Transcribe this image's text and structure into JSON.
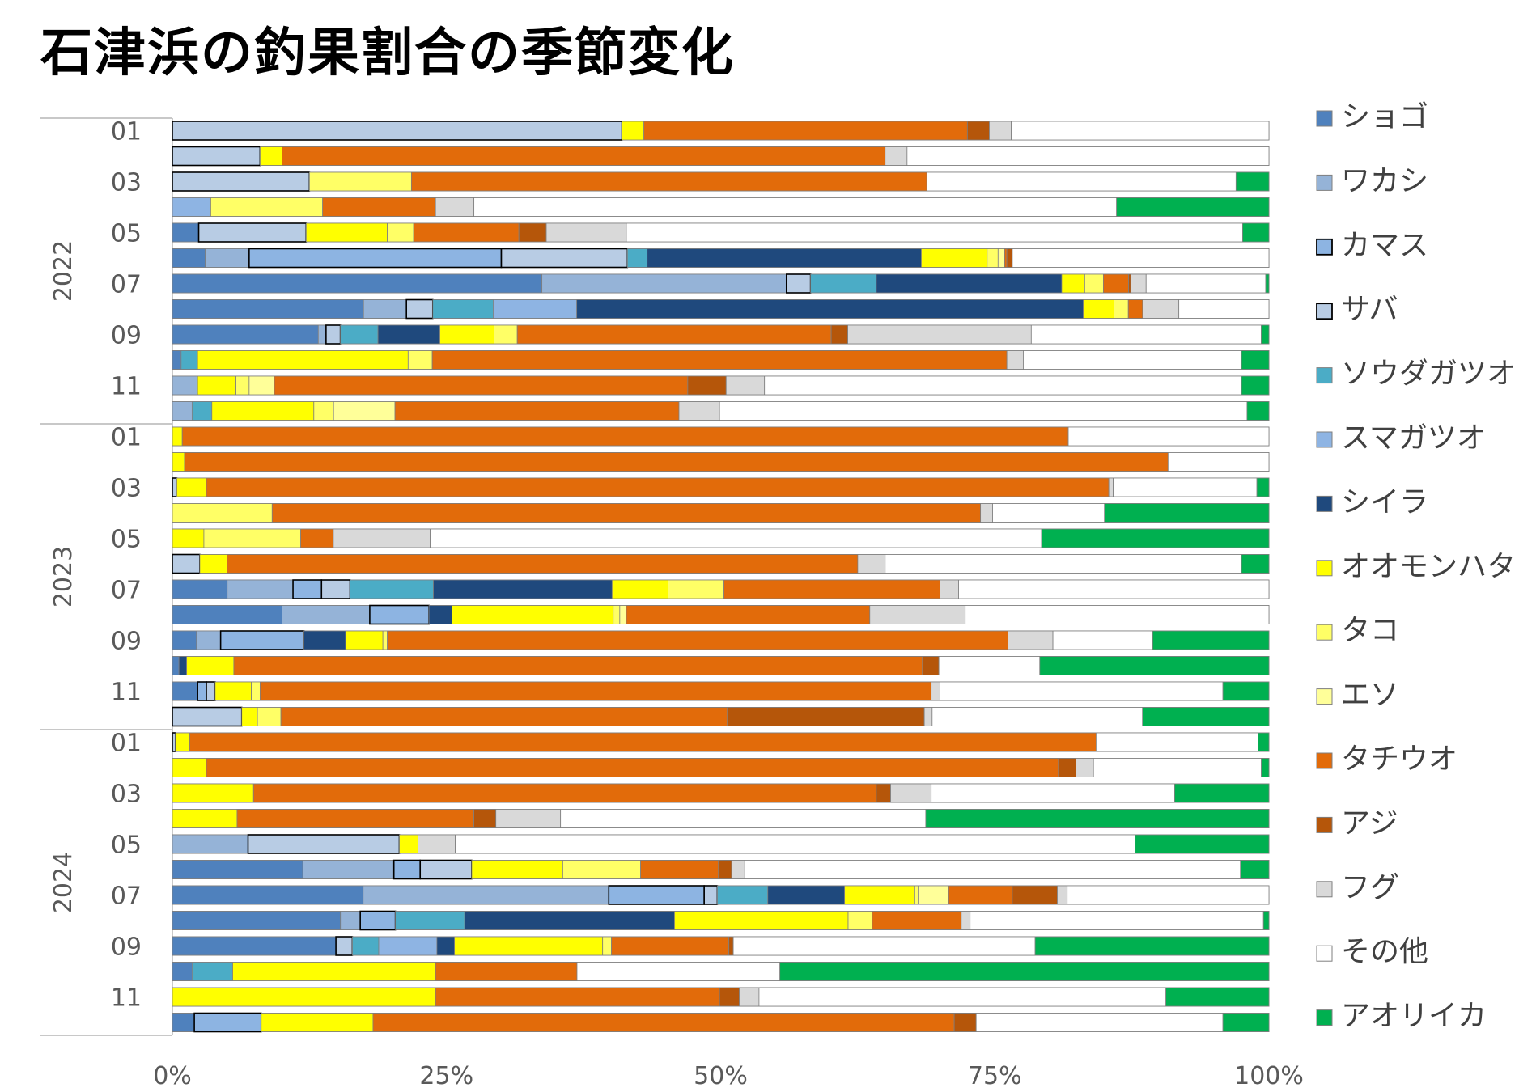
{
  "colors": {
    "text": "#595959",
    "title": "#000000",
    "frame": "#a6a6a6"
  },
  "chart_data": {
    "type": "bar",
    "orientation": "horizontal",
    "stacked": "percent",
    "title": "石津浜の釣果割合の季節変化",
    "xlim": [
      0,
      100
    ],
    "x_ticks": [
      "0%",
      "25%",
      "50%",
      "75%",
      "100%"
    ],
    "grid": false,
    "legend_position": "right",
    "year_labels": [
      "2022",
      "2023",
      "2024"
    ],
    "month_labels": [
      "01",
      "",
      "03",
      "",
      "05",
      "",
      "07",
      "",
      "09",
      "",
      "11",
      ""
    ],
    "series": [
      {
        "name": "ショゴ",
        "color": "#4f81bd",
        "border": "light"
      },
      {
        "name": "ワカシ",
        "color": "#95b3d7",
        "border": "light"
      },
      {
        "name": "カマス",
        "color": "#8db4e2",
        "border": "dark"
      },
      {
        "name": "サバ",
        "color": "#b8cce4",
        "border": "dark"
      },
      {
        "name": "ソウダガツオ",
        "color": "#4bacc6",
        "border": "light"
      },
      {
        "name": "スマガツオ",
        "color": "#8eb4e3",
        "border": "light"
      },
      {
        "name": "シイラ",
        "color": "#1f497d",
        "border": "light"
      },
      {
        "name": "オオモンハタ",
        "color": "#ffff00",
        "border": "light"
      },
      {
        "name": "タコ",
        "color": "#ffff66",
        "border": "light"
      },
      {
        "name": "エソ",
        "color": "#ffff99",
        "border": "light"
      },
      {
        "name": "タチウオ",
        "color": "#e26b0a",
        "border": "light"
      },
      {
        "name": "アジ",
        "color": "#b5560a",
        "border": "light"
      },
      {
        "name": "フグ",
        "color": "#d9d9d9",
        "border": "light"
      },
      {
        "name": "その他",
        "color": "#ffffff",
        "border": "light"
      },
      {
        "name": "アオリイカ",
        "color": "#00b050",
        "border": "light"
      }
    ],
    "rows": [
      [
        0,
        0,
        0,
        41,
        0,
        0,
        0,
        2,
        0,
        0,
        29.5,
        2,
        2,
        23.5,
        0
      ],
      [
        0,
        0,
        0,
        8,
        0,
        0,
        0,
        2,
        0,
        0,
        55,
        0,
        2,
        33,
        0
      ],
      [
        0,
        0,
        0,
        12.5,
        0,
        0,
        0,
        0,
        9.3,
        0,
        47,
        0,
        0,
        28.2,
        3
      ],
      [
        0,
        0,
        0,
        0,
        0,
        3.5,
        0,
        0,
        10.2,
        0,
        10.3,
        0,
        3.5,
        58.6,
        13.9
      ],
      [
        2.4,
        0,
        0,
        9.8,
        0,
        0,
        0,
        7.4,
        2.4,
        0,
        9.6,
        2.5,
        7.3,
        56.2,
        2.4
      ],
      [
        3,
        4,
        23,
        11.5,
        1.8,
        0,
        25,
        6,
        1,
        0.6,
        0.2,
        0.5,
        0,
        23.4,
        0
      ],
      [
        33.7,
        22.3,
        0,
        2.2,
        6,
        0,
        16.9,
        2.1,
        1.7,
        0,
        2.3,
        0.2,
        1.4,
        10.9,
        0.3
      ],
      [
        17.4,
        3.9,
        0,
        2.4,
        5.5,
        7.6,
        46.1,
        2.8,
        1.3,
        0,
        1.3,
        0,
        3.3,
        8.2,
        0
      ],
      [
        13.2,
        0.7,
        0,
        1.3,
        3.4,
        0,
        5.6,
        4.9,
        2.1,
        0,
        28.4,
        1.5,
        16.6,
        20.8,
        0.7
      ],
      [
        0.8,
        0,
        0,
        0,
        1.5,
        0,
        0,
        19.2,
        2.2,
        0,
        52.4,
        0,
        1.5,
        19.9,
        2.5
      ],
      [
        0,
        2.3,
        0,
        0,
        0,
        0,
        0,
        3.5,
        1.2,
        2.3,
        37.7,
        3.5,
        3.5,
        43.5,
        2.5
      ],
      [
        0,
        1.8,
        0,
        0,
        1.8,
        0,
        0,
        9.3,
        1.8,
        5.6,
        25.9,
        0,
        3.7,
        48.1,
        2
      ]
    ],
    "rows_2023": [
      [
        0,
        0,
        0,
        0,
        0,
        0,
        0,
        0.9,
        0,
        0,
        80.8,
        0,
        0,
        18.3,
        0
      ],
      [
        0,
        0,
        0,
        0,
        0,
        0,
        0,
        1.1,
        0,
        0,
        89.7,
        0,
        0,
        9.2,
        0
      ],
      [
        0,
        0,
        0,
        0.4,
        0,
        0,
        0,
        2.7,
        0,
        0,
        82.3,
        0,
        0.4,
        13.1,
        1.1
      ],
      [
        0,
        0,
        0,
        0,
        0,
        0,
        0,
        0,
        9.1,
        0,
        64.6,
        0,
        1.1,
        10.2,
        15
      ],
      [
        0,
        0,
        0,
        0,
        0,
        0,
        0,
        2.7,
        8.3,
        0,
        2.8,
        0,
        8.3,
        52.4,
        19.5
      ],
      [
        0,
        0,
        0,
        2.5,
        0,
        0,
        0,
        2.5,
        0,
        0,
        57.5,
        0,
        2.5,
        32.5,
        2.5
      ],
      [
        5,
        6,
        2.6,
        2.6,
        7.6,
        0,
        16.3,
        5.1,
        5.1,
        0,
        19.7,
        0,
        1.7,
        28.3,
        0
      ],
      [
        10,
        8,
        5.4,
        0,
        0,
        0,
        2.1,
        14.7,
        0.6,
        0.6,
        22.2,
        0,
        8.7,
        27.7,
        0
      ],
      [
        2.2,
        2.2,
        7.6,
        0,
        0,
        0,
        3.8,
        3.4,
        0.4,
        0,
        56.6,
        0,
        4.1,
        9.1,
        10.6
      ],
      [
        0.6,
        0,
        0,
        0,
        0,
        0,
        0.7,
        4.3,
        0,
        0,
        62.8,
        1.5,
        0,
        9.2,
        20.9
      ],
      [
        2.3,
        0,
        0.8,
        0.8,
        0,
        0,
        0,
        3.3,
        0.8,
        0,
        61.2,
        0,
        0.8,
        25.8,
        4.2
      ],
      [
        0,
        0,
        0,
        6.2,
        0,
        0,
        0,
        1.4,
        2.1,
        0,
        39.9,
        17.6,
        0.7,
        18.8,
        11.3
      ]
    ],
    "rows_2024": [
      [
        0,
        0,
        0,
        0.3,
        0,
        0,
        0,
        1.3,
        0,
        0,
        83.9,
        0,
        0,
        15,
        1
      ],
      [
        0,
        0,
        0,
        0,
        0,
        0,
        0,
        3.1,
        0,
        0,
        77.7,
        1.6,
        1.6,
        15.3,
        0.7
      ],
      [
        0,
        0,
        0,
        0,
        0,
        0,
        0,
        7.4,
        0,
        0,
        56.8,
        1.3,
        3.7,
        22.2,
        8.6
      ],
      [
        0,
        0,
        0,
        0,
        0,
        0,
        0,
        5.9,
        0,
        0,
        21.6,
        2,
        5.9,
        33.3,
        31.3
      ],
      [
        0,
        6.9,
        0,
        13.8,
        0,
        0,
        0,
        1.7,
        0,
        0,
        0,
        0,
        3.4,
        62,
        12.2
      ],
      [
        11.9,
        8.3,
        2.4,
        4.7,
        0,
        0,
        0,
        8.3,
        7.1,
        0,
        7.1,
        1.2,
        1.2,
        45.2,
        2.6
      ],
      [
        17.4,
        22.4,
        8.7,
        1.2,
        4.6,
        0,
        7,
        6.4,
        0.3,
        2.8,
        5.8,
        4.1,
        0.9,
        18.4,
        0
      ],
      [
        15.3,
        1.8,
        3.2,
        0,
        6.3,
        0,
        19.1,
        15.8,
        2.2,
        0,
        8.1,
        0,
        0.8,
        26.7,
        0.5
      ],
      [
        14.9,
        0,
        0,
        1.5,
        2.4,
        5.3,
        1.6,
        13.5,
        0.8,
        0,
        10.7,
        0.4,
        0,
        27.5,
        21.3
      ],
      [
        1.8,
        0,
        0,
        0,
        3.7,
        0,
        0,
        18.5,
        0,
        0,
        12.9,
        0,
        0,
        18.5,
        44.6
      ],
      [
        0,
        0,
        0,
        0,
        0,
        0,
        0,
        24,
        0,
        0,
        25.9,
        1.8,
        1.8,
        37.1,
        9.4
      ],
      [
        2,
        0,
        6.1,
        0,
        0,
        0,
        0,
        10.2,
        0,
        0,
        53,
        2,
        0,
        22.5,
        4.2
      ]
    ]
  }
}
